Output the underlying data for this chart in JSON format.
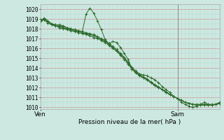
{
  "xlabel": "Pression niveau de la mer( hPa )",
  "ylim": [
    1009.8,
    1020.5
  ],
  "xlim": [
    0,
    47
  ],
  "yticks": [
    1010,
    1011,
    1012,
    1013,
    1014,
    1015,
    1016,
    1017,
    1018,
    1019,
    1020
  ],
  "xtick_positions": [
    0,
    36
  ],
  "xtick_labels": [
    "Ven",
    "Sam"
  ],
  "bg_color": "#cce8e0",
  "line_color": "#2d6b2d",
  "grid_color_major_y": "#cc9999",
  "grid_color_major_x": "#cc9999",
  "grid_color_minor": "#b8d8d0",
  "vline_x": 36,
  "lines": [
    [
      1018.8,
      1019.1,
      1018.8,
      1018.5,
      1018.4,
      1018.4,
      1018.3,
      1018.1,
      1018.0,
      1017.9,
      1017.8,
      1017.7,
      1019.5,
      1020.1,
      1019.6,
      1018.8,
      1017.9,
      1016.9,
      1016.5,
      1016.7,
      1016.6,
      1016.1,
      1015.5,
      1014.9,
      1013.9,
      1013.6,
      1013.4,
      1013.3,
      1013.2,
      1013.0,
      1012.8,
      1012.5,
      1012.1,
      1011.8,
      1011.5,
      1011.1,
      1010.9,
      1010.5,
      1010.3,
      1010.1,
      1010.0,
      1010.1,
      1010.3,
      1010.5,
      1010.3,
      1010.2,
      1010.3,
      1010.5
    ],
    [
      1018.8,
      1018.9,
      1018.6,
      1018.4,
      1018.3,
      1018.1,
      1018.0,
      1017.9,
      1017.8,
      1017.7,
      1017.6,
      1017.5,
      1017.4,
      1017.3,
      1017.1,
      1017.0,
      1016.8,
      1016.6,
      1016.3,
      1016.0,
      1015.7,
      1015.3,
      1014.9,
      1014.4,
      1013.9,
      1013.5,
      1013.2,
      1013.0,
      1012.8,
      1012.5,
      1012.2,
      1012.0,
      1011.8,
      1011.5,
      1011.3,
      1011.1,
      1010.9,
      1010.7,
      1010.5,
      1010.4,
      1010.3,
      1010.2,
      1010.2,
      1010.3,
      1010.2,
      1010.2,
      1010.3,
      1010.4
    ],
    [
      1018.8,
      1018.9,
      1018.6,
      1018.4,
      1018.3,
      1018.2,
      1018.1,
      1018.0,
      1017.9,
      1017.8,
      1017.7,
      1017.6,
      1017.5,
      1017.4,
      1017.3,
      1017.1,
      1016.9,
      1016.7,
      1016.4,
      1016.1,
      1015.8,
      1015.4,
      1015.0,
      1014.5,
      1014.0,
      1013.6,
      1013.3,
      1013.0,
      1012.8,
      1012.5,
      1012.3,
      1012.0,
      1011.8,
      1011.5,
      1011.3,
      1011.1,
      1010.9,
      1010.7,
      1010.5,
      1010.4,
      1010.3,
      1010.2,
      1010.2,
      1010.2,
      1010.2,
      1010.2,
      1010.3,
      1010.4
    ],
    [
      1018.9,
      1019.0,
      1018.7,
      1018.5,
      1018.4,
      1018.3,
      1018.2,
      1018.1,
      1018.0,
      1017.9,
      1017.8,
      1017.7,
      1017.6,
      1017.5,
      1017.4,
      1017.2,
      1017.0,
      1016.8,
      1016.5,
      1016.2,
      1015.9,
      1015.5,
      1015.1,
      1014.6,
      1014.1,
      1013.7,
      1013.4,
      1013.1,
      1012.9,
      1012.6,
      1012.3,
      1012.1,
      1011.8,
      1011.6,
      1011.3,
      1011.1,
      1010.9,
      1010.7,
      1010.5,
      1010.4,
      1010.3,
      1010.3,
      1010.3,
      1010.3,
      1010.3,
      1010.3,
      1010.3,
      1010.4
    ]
  ]
}
